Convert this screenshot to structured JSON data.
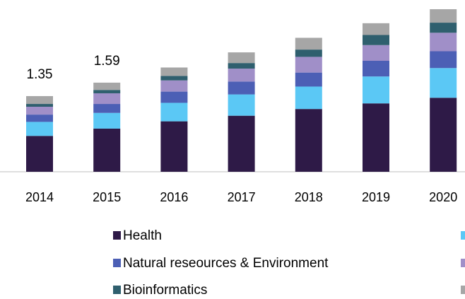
{
  "chart_data": {
    "type": "stacked_bar",
    "categories": [
      "2014",
      "2015",
      "2016",
      "2017",
      "2018",
      "2019",
      "2020"
    ],
    "totals": [
      1.35,
      1.59,
      null,
      null,
      null,
      null,
      null
    ],
    "series": [
      {
        "name": "Health",
        "color": "#2e1a47",
        "values": [
          0.64,
          0.77,
          0.9,
          1.0,
          1.12,
          1.22,
          1.32
        ]
      },
      {
        "color": "#5bc8f5",
        "values": [
          0.25,
          0.28,
          0.33,
          0.38,
          0.4,
          0.48,
          0.53
        ]
      },
      {
        "name": "Natural reseources & Environment",
        "color": "#4c5fb5",
        "values": [
          0.13,
          0.16,
          0.2,
          0.23,
          0.25,
          0.28,
          0.3
        ]
      },
      {
        "color": "#a08fc8",
        "values": [
          0.14,
          0.19,
          0.2,
          0.23,
          0.28,
          0.28,
          0.33
        ]
      },
      {
        "name": "Bioinformatics",
        "color": "#2f5f6e",
        "values": [
          0.05,
          0.06,
          0.08,
          0.1,
          0.13,
          0.18,
          0.18
        ]
      },
      {
        "color": "#a6a6a6",
        "values": [
          0.14,
          0.13,
          0.15,
          0.19,
          0.21,
          0.21,
          0.24
        ]
      }
    ]
  }
}
